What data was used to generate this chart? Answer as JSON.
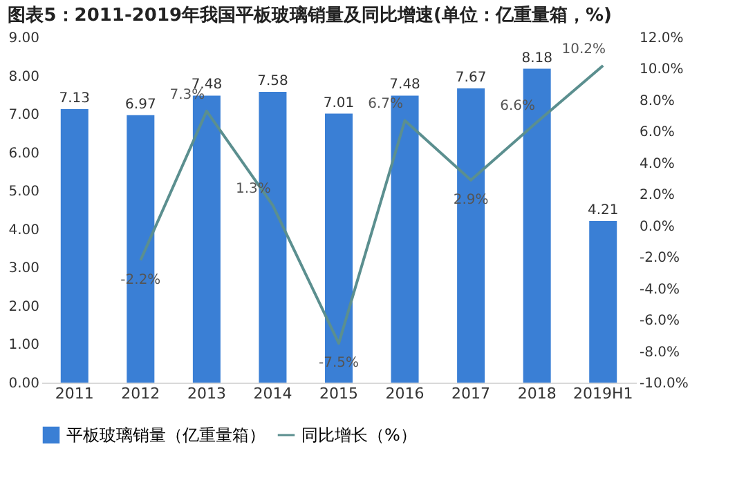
{
  "chart_data": {
    "type": "bar",
    "title": "图表5：2011-2019年我国平板玻璃销量及同比增速(单位：亿重量箱，%)",
    "categories": [
      "2011",
      "2012",
      "2013",
      "2014",
      "2015",
      "2016",
      "2017",
      "2018",
      "2019H1"
    ],
    "series": [
      {
        "name": "平板玻璃销量（亿重量箱）",
        "color": "#3a7fd5",
        "axis": "y",
        "values": [
          7.13,
          6.97,
          7.48,
          7.58,
          7.01,
          7.48,
          7.67,
          8.18,
          4.21
        ],
        "value_labels": [
          "7.13",
          "6.97",
          "7.48",
          "7.58",
          "7.01",
          "7.48",
          "7.67",
          "8.18",
          "4.21"
        ]
      },
      {
        "name": "同比增长（%）",
        "type": "line",
        "color": "#5b8f8f",
        "axis": "y2",
        "values": [
          null,
          -2.2,
          7.3,
          1.3,
          -7.5,
          6.7,
          2.9,
          6.6,
          10.2
        ],
        "value_labels": [
          null,
          "-2.2%",
          "7.3%",
          "1.3%",
          "-7.5%",
          "6.7%",
          "2.9%",
          "6.6%",
          "10.2%"
        ]
      }
    ],
    "ylim": [
      0,
      9
    ],
    "yticks": [
      {
        "value": 0,
        "label": "0.00"
      },
      {
        "value": 1,
        "label": "1.00"
      },
      {
        "value": 2,
        "label": "2.00"
      },
      {
        "value": 3,
        "label": "3.00"
      },
      {
        "value": 4,
        "label": "4.00"
      },
      {
        "value": 5,
        "label": "5.00"
      },
      {
        "value": 6,
        "label": "6.00"
      },
      {
        "value": 7,
        "label": "7.00"
      },
      {
        "value": 8,
        "label": "8.00"
      },
      {
        "value": 9,
        "label": "9.00"
      }
    ],
    "y2lim": [
      -10,
      12
    ],
    "y2ticks": [
      {
        "value": -10,
        "label": "-10.0%"
      },
      {
        "value": -8,
        "label": "-8.0%"
      },
      {
        "value": -6,
        "label": "-6.0%"
      },
      {
        "value": -4,
        "label": "-4.0%"
      },
      {
        "value": -2,
        "label": "-2.0%"
      },
      {
        "value": 0,
        "label": "0.0%"
      },
      {
        "value": 2,
        "label": "2.0%"
      },
      {
        "value": 4,
        "label": "4.0%"
      },
      {
        "value": 6,
        "label": "6.0%"
      },
      {
        "value": 8,
        "label": "8.0%"
      },
      {
        "value": 10,
        "label": "10.0%"
      },
      {
        "value": 12,
        "label": "12.0%"
      }
    ],
    "grid": false,
    "legend": "bottom"
  }
}
